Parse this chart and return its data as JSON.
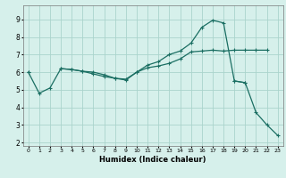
{
  "xlabel": "Humidex (Indice chaleur)",
  "xlim": [
    -0.5,
    23.5
  ],
  "ylim": [
    1.8,
    9.8
  ],
  "yticks": [
    2,
    3,
    4,
    5,
    6,
    7,
    8,
    9
  ],
  "xticks": [
    0,
    1,
    2,
    3,
    4,
    5,
    6,
    7,
    8,
    9,
    10,
    11,
    12,
    13,
    14,
    15,
    16,
    17,
    18,
    19,
    20,
    21,
    22,
    23
  ],
  "bg_color": "#d6f0eb",
  "grid_color": "#aad4cc",
  "line_color": "#1a6e62",
  "line1_x": [
    0,
    1,
    2,
    3,
    4,
    5,
    6,
    7,
    8,
    9,
    10,
    11,
    12,
    13,
    14,
    15,
    16,
    17,
    18,
    19,
    20,
    21,
    22
  ],
  "line1_y": [
    6.0,
    4.8,
    5.1,
    6.2,
    6.15,
    6.05,
    6.0,
    5.85,
    5.65,
    5.6,
    6.0,
    6.25,
    6.35,
    6.5,
    6.75,
    7.15,
    7.2,
    7.25,
    7.2,
    7.25,
    7.25,
    7.25,
    7.25
  ],
  "line2_x": [
    0,
    3,
    4,
    5,
    6,
    7,
    8,
    9,
    10,
    11,
    12,
    13,
    14,
    15,
    16,
    17,
    18,
    19,
    20
  ],
  "line2_y": [
    6.0,
    6.2,
    6.15,
    6.05,
    5.9,
    5.75,
    5.65,
    5.55,
    6.0,
    6.4,
    6.6,
    7.0,
    7.2,
    7.65,
    8.55,
    8.95,
    8.8,
    5.5,
    5.4
  ],
  "line3_x": [
    19,
    20,
    21,
    22,
    23
  ],
  "line3_y": [
    5.5,
    5.4,
    3.7,
    3.0,
    2.4
  ]
}
